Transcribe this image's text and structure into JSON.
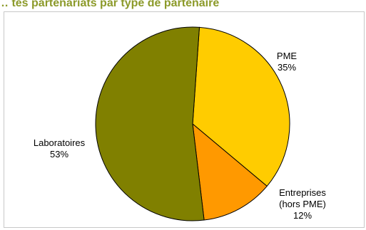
{
  "chart_data": {
    "type": "pie",
    "title": "… tes partenariats par type de partenaire",
    "slices": [
      {
        "label": "PME",
        "value": 35,
        "value_label": "35%",
        "color": "#ffcc00"
      },
      {
        "label": "Entreprises (hors PME)",
        "label_lines": [
          "Entreprises",
          "(hors PME)"
        ],
        "value": 12,
        "value_label": "12%",
        "color": "#ff9900"
      },
      {
        "label": "Laboratoires",
        "value": 53,
        "value_label": "53%",
        "color": "#808000"
      }
    ],
    "border_color": "#000000",
    "legend": "none"
  }
}
